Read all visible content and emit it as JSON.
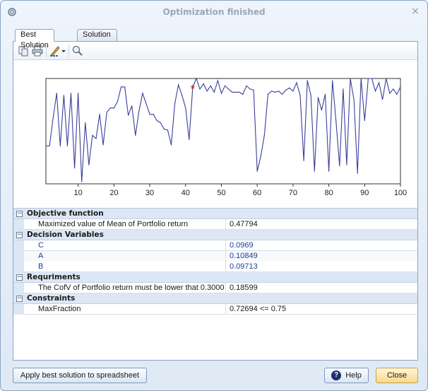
{
  "window": {
    "title": "Optimization finished",
    "close_glyph": "×"
  },
  "tabs": [
    {
      "label": "Best Solution",
      "active": true
    },
    {
      "label": "Solution Analysis",
      "active": false
    }
  ],
  "toolbar": {
    "icons": [
      "copy-icon",
      "print-icon",
      "chart-style-icon",
      "dropdown-arrow-icon",
      "zoom-icon"
    ]
  },
  "chart_data": {
    "type": "line",
    "x_ticks": [
      10,
      20,
      30,
      40,
      50,
      60,
      70,
      80,
      90,
      100
    ],
    "xlim": [
      1,
      100
    ],
    "ylim": [
      0,
      1
    ],
    "series_color": "#3b3f9a",
    "best_marker_color": "#c0392b",
    "best_x": 42,
    "x": [
      1,
      2,
      3,
      4,
      5,
      6,
      7,
      8,
      9,
      10,
      11,
      12,
      13,
      14,
      15,
      16,
      17,
      18,
      19,
      20,
      21,
      22,
      23,
      24,
      25,
      26,
      27,
      28,
      29,
      30,
      31,
      32,
      33,
      34,
      35,
      36,
      37,
      38,
      39,
      40,
      41,
      42,
      43,
      44,
      45,
      46,
      47,
      48,
      49,
      50,
      51,
      52,
      53,
      54,
      55,
      56,
      57,
      58,
      59,
      60,
      61,
      62,
      63,
      64,
      65,
      66,
      67,
      68,
      69,
      70,
      71,
      72,
      73,
      74,
      75,
      76,
      77,
      78,
      79,
      80,
      81,
      82,
      83,
      84,
      85,
      86,
      87,
      88,
      89,
      90,
      91,
      92,
      93,
      94,
      95,
      96,
      97,
      98,
      99,
      100
    ],
    "y": [
      0.36,
      0.36,
      0.62,
      0.86,
      0.36,
      0.84,
      0.36,
      0.86,
      0.15,
      0.86,
      0.02,
      0.58,
      0.18,
      0.46,
      0.43,
      0.66,
      0.37,
      0.68,
      0.72,
      0.72,
      0.78,
      0.92,
      0.92,
      0.65,
      0.74,
      0.46,
      0.69,
      0.86,
      0.76,
      0.66,
      0.66,
      0.6,
      0.58,
      0.52,
      0.51,
      0.37,
      0.76,
      0.94,
      0.84,
      0.72,
      0.42,
      0.92,
      1.0,
      0.9,
      0.95,
      0.88,
      0.93,
      0.87,
      0.98,
      0.86,
      0.93,
      0.9,
      0.87,
      0.87,
      0.87,
      0.85,
      0.93,
      0.9,
      0.89,
      0.12,
      0.26,
      0.46,
      0.85,
      0.88,
      0.87,
      0.88,
      0.85,
      0.89,
      0.91,
      0.88,
      0.96,
      0.84,
      0.22,
      0.98,
      0.84,
      0.12,
      0.82,
      0.7,
      0.85,
      0.12,
      0.98,
      0.6,
      0.17,
      0.9,
      0.18,
      1.0,
      0.8,
      0.1,
      1.0,
      0.6,
      1.0,
      1.0,
      0.88,
      0.96,
      0.8,
      1.0,
      0.86,
      0.9,
      0.85,
      0.92
    ]
  },
  "grid": {
    "categories": [
      {
        "label": "Objective function",
        "toggle": "−",
        "rows": [
          {
            "name": "Maximized value of Mean of Portfolio return",
            "value": "0.47794",
            "blue": false
          }
        ]
      },
      {
        "label": "Decision Variables",
        "toggle": "−",
        "rows": [
          {
            "name": "C",
            "value": "0.0969",
            "blue": true
          },
          {
            "name": "A",
            "value": "0.10849",
            "blue": true
          },
          {
            "name": "B",
            "value": "0.09713",
            "blue": true
          }
        ]
      },
      {
        "label": "Requriments",
        "toggle": "−",
        "rows": [
          {
            "name": "The CofV of Portfolio return must be lower that 0.3000",
            "value": "0.18599",
            "blue": false
          }
        ]
      },
      {
        "label": "Constraints",
        "toggle": "−",
        "rows": [
          {
            "name": "MaxFraction",
            "value": "0.72694 <= 0.75",
            "blue": false
          }
        ]
      }
    ]
  },
  "buttons": {
    "apply": "Apply best solution to spreadsheet",
    "help": "Help",
    "help_glyph": "?",
    "close": "Close"
  }
}
